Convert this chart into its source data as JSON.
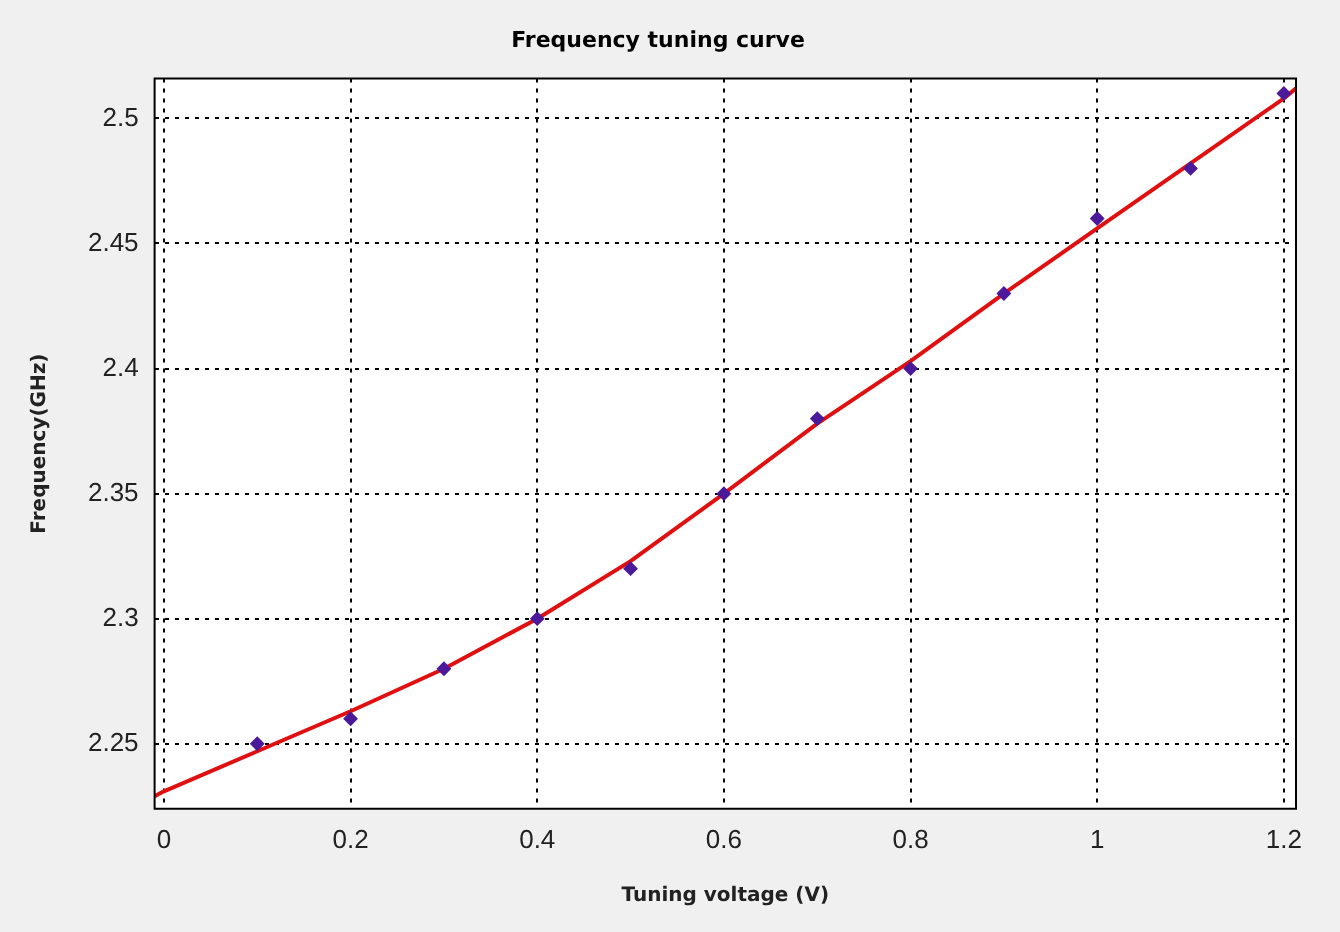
{
  "chart_data": {
    "type": "scatter",
    "title": "Frequency tuning curve",
    "xlabel": "Tuning voltage (V)",
    "ylabel": "Frequency(GHz)",
    "xlim": [
      -0.01,
      1.213
    ],
    "ylim": [
      2.224,
      2.516
    ],
    "xticks": [
      0,
      0.2,
      0.4,
      0.6,
      0.8,
      1,
      1.2
    ],
    "yticks": [
      2.25,
      2.3,
      2.35,
      2.4,
      2.45,
      2.5
    ],
    "grid": true,
    "marker": "diamond",
    "series": [
      {
        "color": "#4b1a9a",
        "x": [
          0.1,
          0.2,
          0.3,
          0.4,
          0.5,
          0.6,
          0.7,
          0.8,
          0.9,
          1.0,
          1.1,
          1.2
        ],
        "values": [
          2.25,
          2.26,
          2.28,
          2.3,
          2.32,
          2.35,
          2.38,
          2.4,
          2.43,
          2.46,
          2.48,
          2.51
        ]
      },
      {
        "type": "line",
        "color": "#e01010",
        "marker": "none",
        "line_style": "solid",
        "x": [
          -0.01,
          0,
          0.1,
          0.2,
          0.3,
          0.4,
          0.5,
          0.6,
          0.7,
          0.8,
          0.9,
          1.0,
          1.1,
          1.2,
          1.213
        ],
        "values": [
          2.229,
          2.231,
          2.247,
          2.263,
          2.28,
          2.3,
          2.323,
          2.35,
          2.378,
          2.403,
          2.43,
          2.456,
          2.482,
          2.508,
          2.512
        ]
      }
    ]
  }
}
